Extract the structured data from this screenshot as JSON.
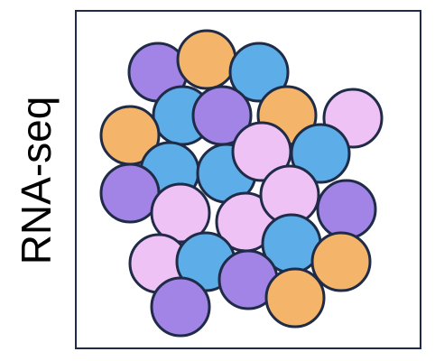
{
  "label": "RNA-seq",
  "colors": {
    "frame": "#1f2b47",
    "cell_stroke": "#1f2b47",
    "orange": "#f4b56a",
    "blue": "#5cade8",
    "purple": "#a283e6",
    "pink": "#efc2f5"
  },
  "cells": [
    {
      "color": "purple"
    },
    {
      "color": "orange"
    },
    {
      "color": "blue"
    },
    {
      "color": "blue"
    },
    {
      "color": "purple"
    },
    {
      "color": "orange"
    },
    {
      "color": "pink"
    },
    {
      "color": "orange"
    },
    {
      "color": "blue"
    },
    {
      "color": "blue"
    },
    {
      "color": "pink"
    },
    {
      "color": "blue"
    },
    {
      "color": "purple"
    },
    {
      "color": "pink"
    },
    {
      "color": "pink"
    },
    {
      "color": "pink"
    },
    {
      "color": "purple"
    },
    {
      "color": "pink"
    },
    {
      "color": "blue"
    },
    {
      "color": "blue"
    },
    {
      "color": "orange"
    },
    {
      "color": "purple"
    },
    {
      "color": "orange"
    },
    {
      "color": "purple"
    }
  ]
}
